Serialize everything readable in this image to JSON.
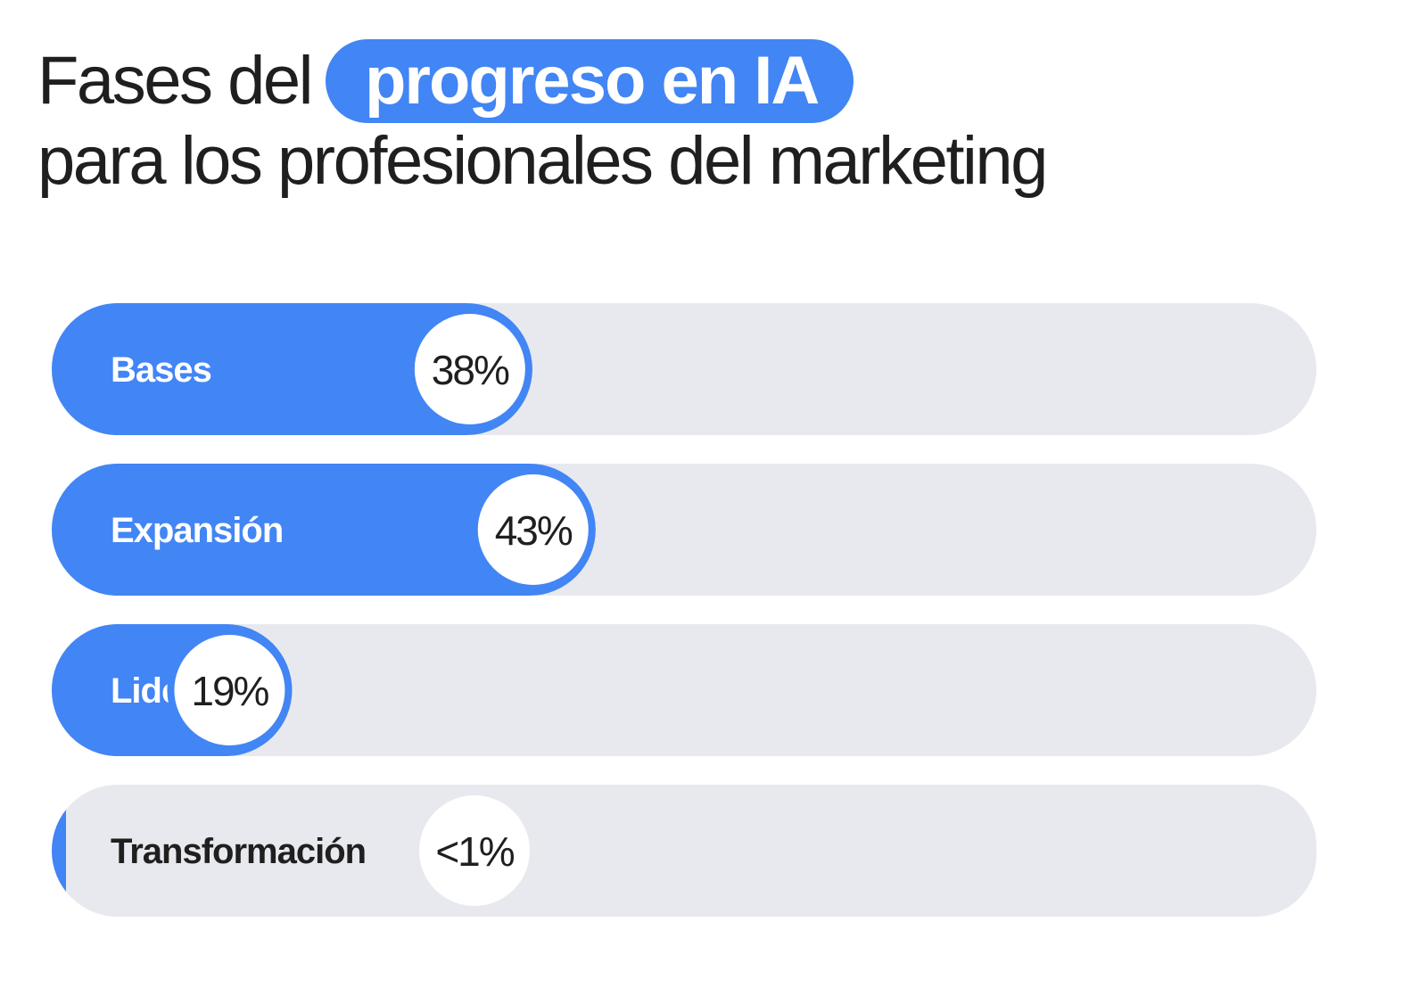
{
  "title": {
    "prefix": "Fases del",
    "highlight": "progreso en IA",
    "second_line": "para los profesionales del marketing"
  },
  "colors": {
    "accent": "#4285f4",
    "track": "#e8e9ee",
    "text_dark": "#1f1f1f",
    "text_light": "#ffffff",
    "badge": "#ffffff"
  },
  "chart_data": {
    "type": "bar",
    "orientation": "horizontal",
    "title": "Fases del progreso en IA para los profesionales del marketing",
    "categories": [
      "Bases",
      "Expansión",
      "Liderazgo",
      "Transformación"
    ],
    "values": [
      38,
      43,
      19,
      0.5
    ],
    "value_labels": [
      "38%",
      "43%",
      "19%",
      "<1%"
    ],
    "unit": "%",
    "xlim": [
      0,
      100
    ],
    "grid": false,
    "legend": "none"
  }
}
